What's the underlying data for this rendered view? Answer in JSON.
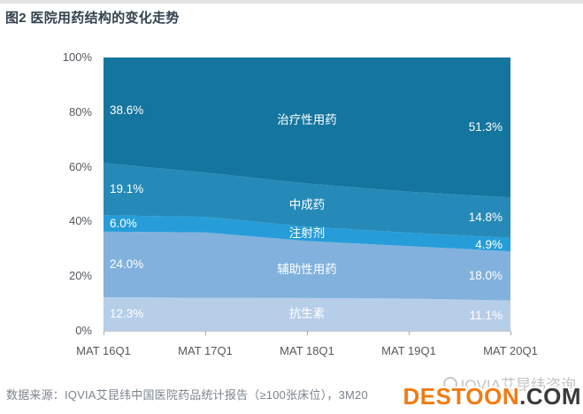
{
  "title": "图2 医院用药结构的变化走势",
  "chart_data": {
    "type": "area",
    "stacking": "percent",
    "title": "图2 医院用药结构的变化走势",
    "categories": [
      "MAT 16Q1",
      "MAT 17Q1",
      "MAT 18Q1",
      "MAT 19Q1",
      "MAT 20Q1"
    ],
    "y_ticks": [
      "100%",
      "80%",
      "60%",
      "40%",
      "20%",
      "0%"
    ],
    "ylim": [
      0,
      100
    ],
    "grid": "off",
    "legend": "labels drawn inside bands at chart center",
    "value_labels": "first and last data points only, shown as percentages",
    "stack_order": "bottom-to-top",
    "series": [
      {
        "name": "抗生素",
        "values": [
          12.3,
          12.1,
          12.0,
          11.8,
          11.1
        ],
        "color": "#b7cee9"
      },
      {
        "name": "辅助性用药",
        "values": [
          24.0,
          23.9,
          20.9,
          19.2,
          18.0
        ],
        "color": "#81b1dc"
      },
      {
        "name": "注射剂",
        "values": [
          6.0,
          5.7,
          5.2,
          4.9,
          4.9
        ],
        "color": "#269dd8"
      },
      {
        "name": "中成药",
        "values": [
          19.1,
          16.2,
          15.8,
          15.0,
          14.8
        ],
        "color": "#268ab8"
      },
      {
        "name": "治疗性用药",
        "values": [
          38.6,
          42.1,
          46.1,
          49.1,
          51.3
        ],
        "color": "#14759e"
      }
    ]
  },
  "footer": {
    "source": "数据来源：IQVIA艾昆纬中国医院药品统计报告（≥100张床位），3M20"
  },
  "watermark": {
    "gray_text": "IQVIA艾昆纬咨询",
    "brand": "DESTOON",
    "tld": ".COM",
    "brand_color": "#f07c12",
    "tld_color": "#3a3a3a"
  }
}
